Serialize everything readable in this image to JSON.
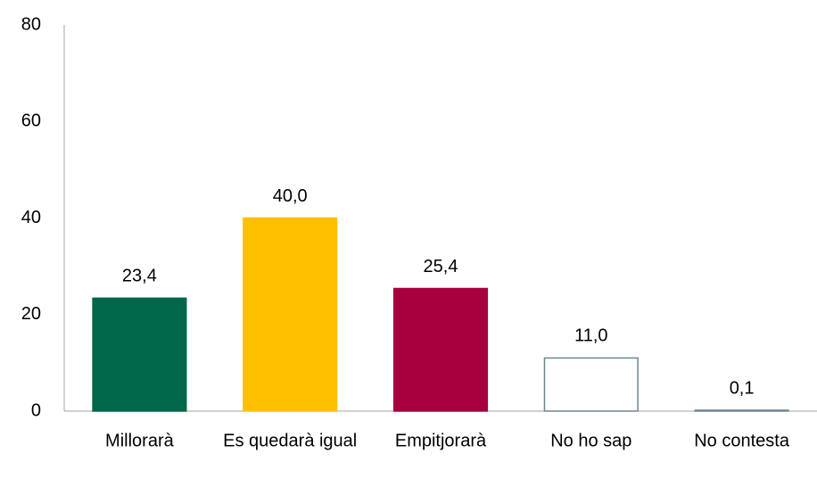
{
  "chart_data": {
    "type": "bar",
    "categories": [
      "Millorarà",
      "Es quedarà igual",
      "Empitjorarà",
      "No ho sap",
      "No contesta"
    ],
    "values": [
      23.4,
      40.0,
      25.4,
      11.0,
      0.1
    ],
    "value_labels": [
      "23,4",
      "40,0",
      "25,4",
      "11,0",
      "0,1"
    ],
    "colors": [
      "#00674a",
      "#ffc000",
      "#a8003f",
      "#ffffff",
      "#ffffff"
    ],
    "edgecolors": [
      "#00674a",
      "#ffc000",
      "#a8003f",
      "#6d8593",
      "#6d8593"
    ],
    "ylim": [
      0,
      80
    ],
    "yticks": [
      0,
      20,
      40,
      60,
      80
    ],
    "grid": false
  }
}
